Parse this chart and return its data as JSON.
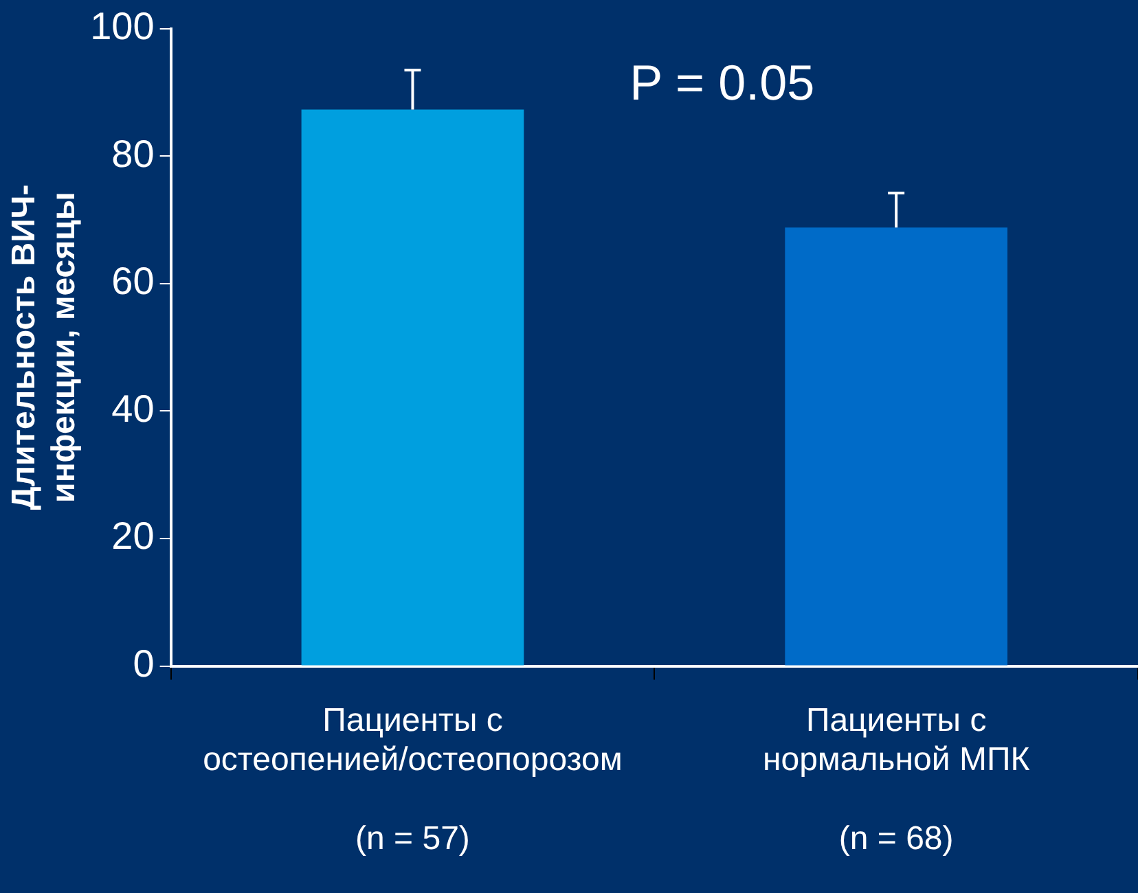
{
  "chart_data": {
    "type": "bar",
    "ylabel": "Длительность ВИЧ-\nинфекции, месяцы",
    "categories": [
      "Пациенты с\nостеопенией/остеопорозом\n\n(n = 57)",
      "Пациенты с\nнормальной МПК\n\n(n = 68)"
    ],
    "values": [
      87.3,
      68.8
    ],
    "colors": [
      "#009fdf",
      "#006bc8"
    ],
    "errors": [
      [
        87.3,
        93.5
      ],
      [
        68.8,
        74.2
      ]
    ],
    "ylim": [
      0,
      100
    ],
    "yticks": [
      0,
      20,
      40,
      60,
      80,
      100
    ],
    "annotations": [
      "P = 0.05"
    ],
    "grid": false,
    "legend": false
  }
}
